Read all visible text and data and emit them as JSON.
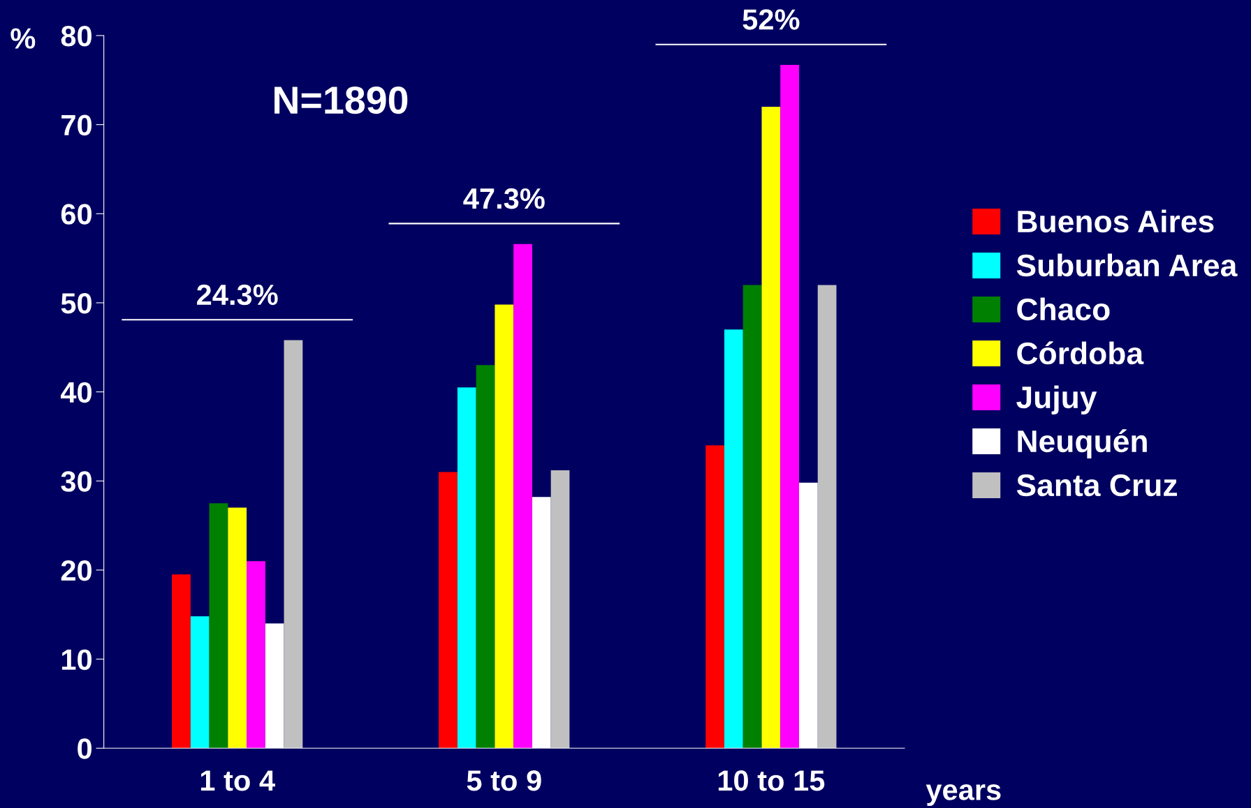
{
  "chart_data": {
    "type": "bar",
    "ylabel": "%",
    "xlabel": "years",
    "categories": [
      "1 to 4",
      "5 to 9",
      "10 to 15"
    ],
    "series": [
      {
        "name": "Buenos Aires",
        "color": "#ff0000",
        "values": [
          19.5,
          31,
          34
        ]
      },
      {
        "name": "Suburban Area",
        "color": "#00ffff",
        "values": [
          14.8,
          40.5,
          47
        ]
      },
      {
        "name": "Chaco",
        "color": "#008000",
        "values": [
          27.5,
          43,
          52
        ]
      },
      {
        "name": "Córdoba",
        "color": "#ffff00",
        "values": [
          27,
          49.8,
          72
        ]
      },
      {
        "name": "Jujuy",
        "color": "#ff00ff",
        "values": [
          21,
          56.6,
          76.7
        ]
      },
      {
        "name": "Neuquén",
        "color": "#ffffff",
        "values": [
          14,
          28.2,
          29.8
        ]
      },
      {
        "name": "Santa Cruz",
        "color": "#c0c0c0",
        "values": [
          45.8,
          31.2,
          52
        ]
      }
    ],
    "ylim": [
      0,
      80
    ],
    "yticks": [
      0,
      10,
      20,
      30,
      40,
      50,
      60,
      70,
      80
    ],
    "grid": false,
    "legend": "right",
    "annotations": [
      "N=1890",
      "24.3%",
      "47.3%",
      "52%"
    ]
  }
}
